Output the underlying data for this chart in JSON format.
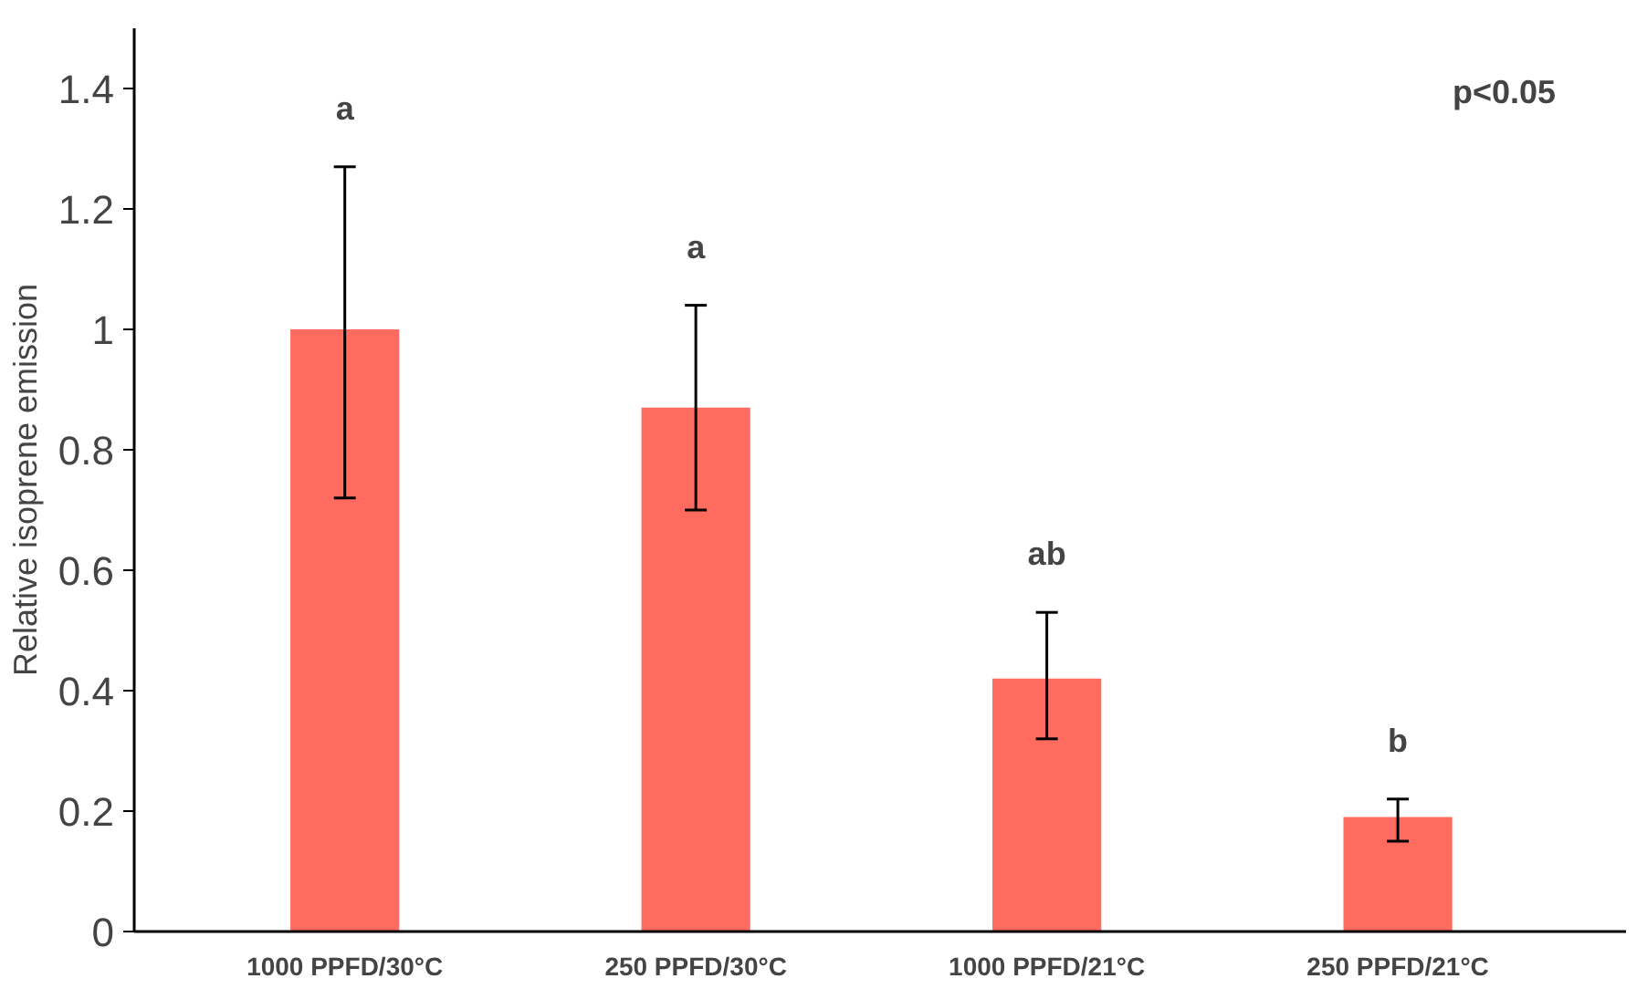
{
  "chart_data": {
    "type": "bar",
    "ylabel": "Relative isoprene emission",
    "categories": [
      "1000 PPFD/30°C",
      "250 PPFD/30°C",
      "1000 PPFD/21°C",
      "250 PPFD/21°C"
    ],
    "values": [
      1.0,
      0.87,
      0.42,
      0.19
    ],
    "errors": [
      [
        0.72,
        1.27
      ],
      [
        0.7,
        1.04
      ],
      [
        0.32,
        0.53
      ],
      [
        0.15,
        0.22
      ]
    ],
    "color": "#ff6b5e",
    "ylim": [
      0,
      1.5
    ],
    "yticks": [
      0,
      0.2,
      0.4,
      0.6,
      0.8,
      1,
      1.2,
      1.4
    ],
    "grid": false,
    "annotations": [
      "a",
      "a",
      "ab",
      "b",
      "p<0.05"
    ]
  }
}
